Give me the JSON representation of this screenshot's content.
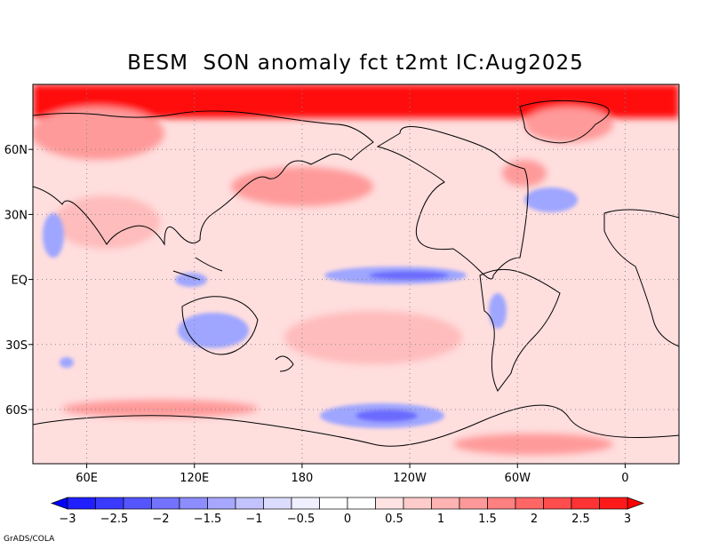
{
  "title": "BESM  SON anomaly fct t2mt IC:Aug2025",
  "credit": "GrADS/COLA",
  "map": {
    "lon_ticks": [
      {
        "lon": 60,
        "label": "60E"
      },
      {
        "lon": 120,
        "label": "120E"
      },
      {
        "lon": 180,
        "label": "180"
      },
      {
        "lon": 240,
        "label": "120W"
      },
      {
        "lon": 300,
        "label": "60W"
      },
      {
        "lon": 360,
        "label": "0"
      }
    ],
    "lat_ticks": [
      {
        "lat": 60,
        "label": "60N"
      },
      {
        "lat": 30,
        "label": "30N"
      },
      {
        "lat": 0,
        "label": "EQ"
      },
      {
        "lat": -30,
        "label": "30S"
      },
      {
        "lat": -60,
        "label": "60S"
      }
    ]
  },
  "colorbar": {
    "labels": [
      "−3",
      "−2.5",
      "−2",
      "−1.5",
      "−1",
      "−0.5",
      "0",
      "0.5",
      "1",
      "1.5",
      "2",
      "2.5",
      "3"
    ],
    "colors": [
      "#1f1fff",
      "#3a3aff",
      "#5555ff",
      "#7272ff",
      "#8d8dff",
      "#a7a7ff",
      "#c2c2ff",
      "#dcdcff",
      "#efefff",
      "#ffffff",
      "#ffffff",
      "#ffe3e3",
      "#ffcccc",
      "#ffb3b3",
      "#ff9999",
      "#ff8080",
      "#ff6666",
      "#ff4d4d",
      "#ff3333",
      "#ff1a1a"
    ],
    "min_color": "#0000ff",
    "max_color": "#ff0000"
  },
  "palette": {
    "ocean_base": "#ffdede",
    "warm_strong": "#ff1010",
    "warm_mid": "#ff9a9a",
    "cool_mid": "#9fa6ff",
    "cool_strong": "#6b6bff",
    "coastline": "#000000",
    "grid": "#888888"
  }
}
